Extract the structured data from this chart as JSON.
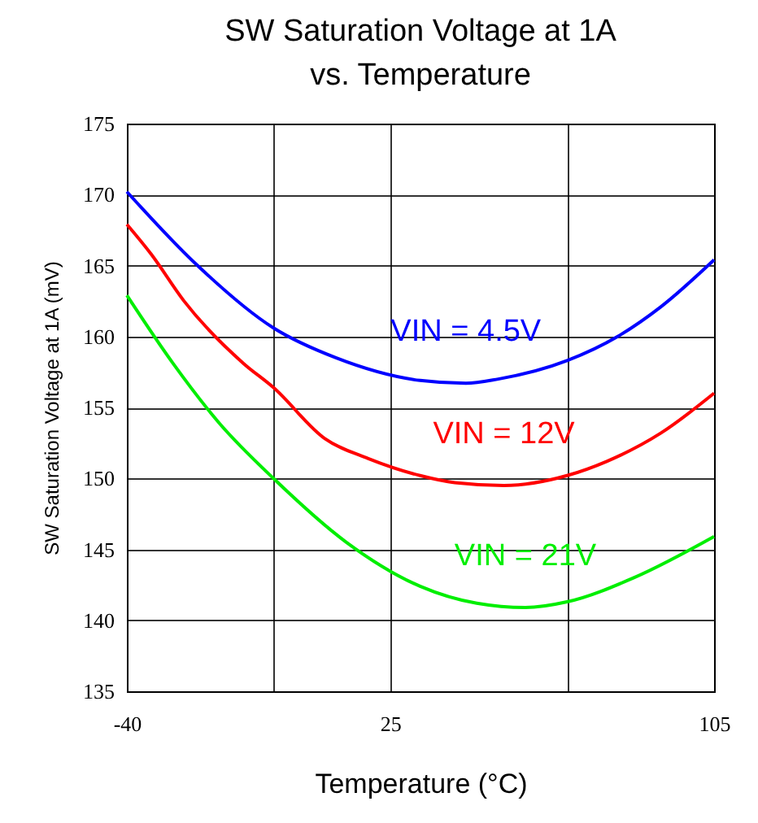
{
  "chart_data": {
    "type": "line",
    "title": "SW Saturation Voltage at 1A\nvs. Temperature",
    "xlabel": "Temperature (°C)",
    "ylabel": "SW Saturation Voltage at 1A (mV)",
    "xlim": [
      -40,
      105
    ],
    "xticks": [
      -40,
      {
        "value": -3.75,
        "label": null
      },
      25,
      {
        "value": 68.75,
        "label": null
      },
      105
    ],
    "ylim": [
      135,
      175
    ],
    "yticks": [
      135,
      140,
      145,
      150,
      155,
      160,
      165,
      170,
      175
    ],
    "grid": true,
    "legend": false,
    "marker": "none",
    "line_style": "solid",
    "series": [
      {
        "name": "VIN = 4.5V",
        "color": "#0000ff",
        "x": [
          -40,
          -23.3,
          -3.8,
          11.6,
          32.4,
          43.7,
          51.7,
          68.7,
          81.2,
          91.9,
          105
        ],
        "values": [
          170.2,
          165.2,
          160.6,
          158.5,
          156.9,
          156.7,
          157.0,
          158.3,
          160.0,
          162.1,
          165.4
        ]
      },
      {
        "name": "VIN = 12V",
        "color": "#ff0000",
        "x": [
          -40,
          -34,
          -25.9,
          -11.2,
          -3.8,
          8.9,
          19.6,
          32.4,
          41,
          53.1,
          68.7,
          78.5,
          91.9,
          105
        ],
        "values": [
          167.9,
          165.8,
          162.5,
          158.1,
          156.4,
          152.8,
          151.4,
          150.2,
          149.7,
          149.5,
          150.2,
          151.2,
          153.2,
          156.0
        ]
      },
      {
        "name": "VIN = 21V",
        "color": "#00ee00",
        "x": [
          -40,
          -28.6,
          -17.2,
          -3.8,
          14.2,
          32.4,
          46.4,
          58.4,
          68.7,
          85.2,
          105
        ],
        "values": [
          162.9,
          158.1,
          153.9,
          150.0,
          145.5,
          142.4,
          141.2,
          140.9,
          141.3,
          143.0,
          145.9
        ]
      }
    ]
  }
}
